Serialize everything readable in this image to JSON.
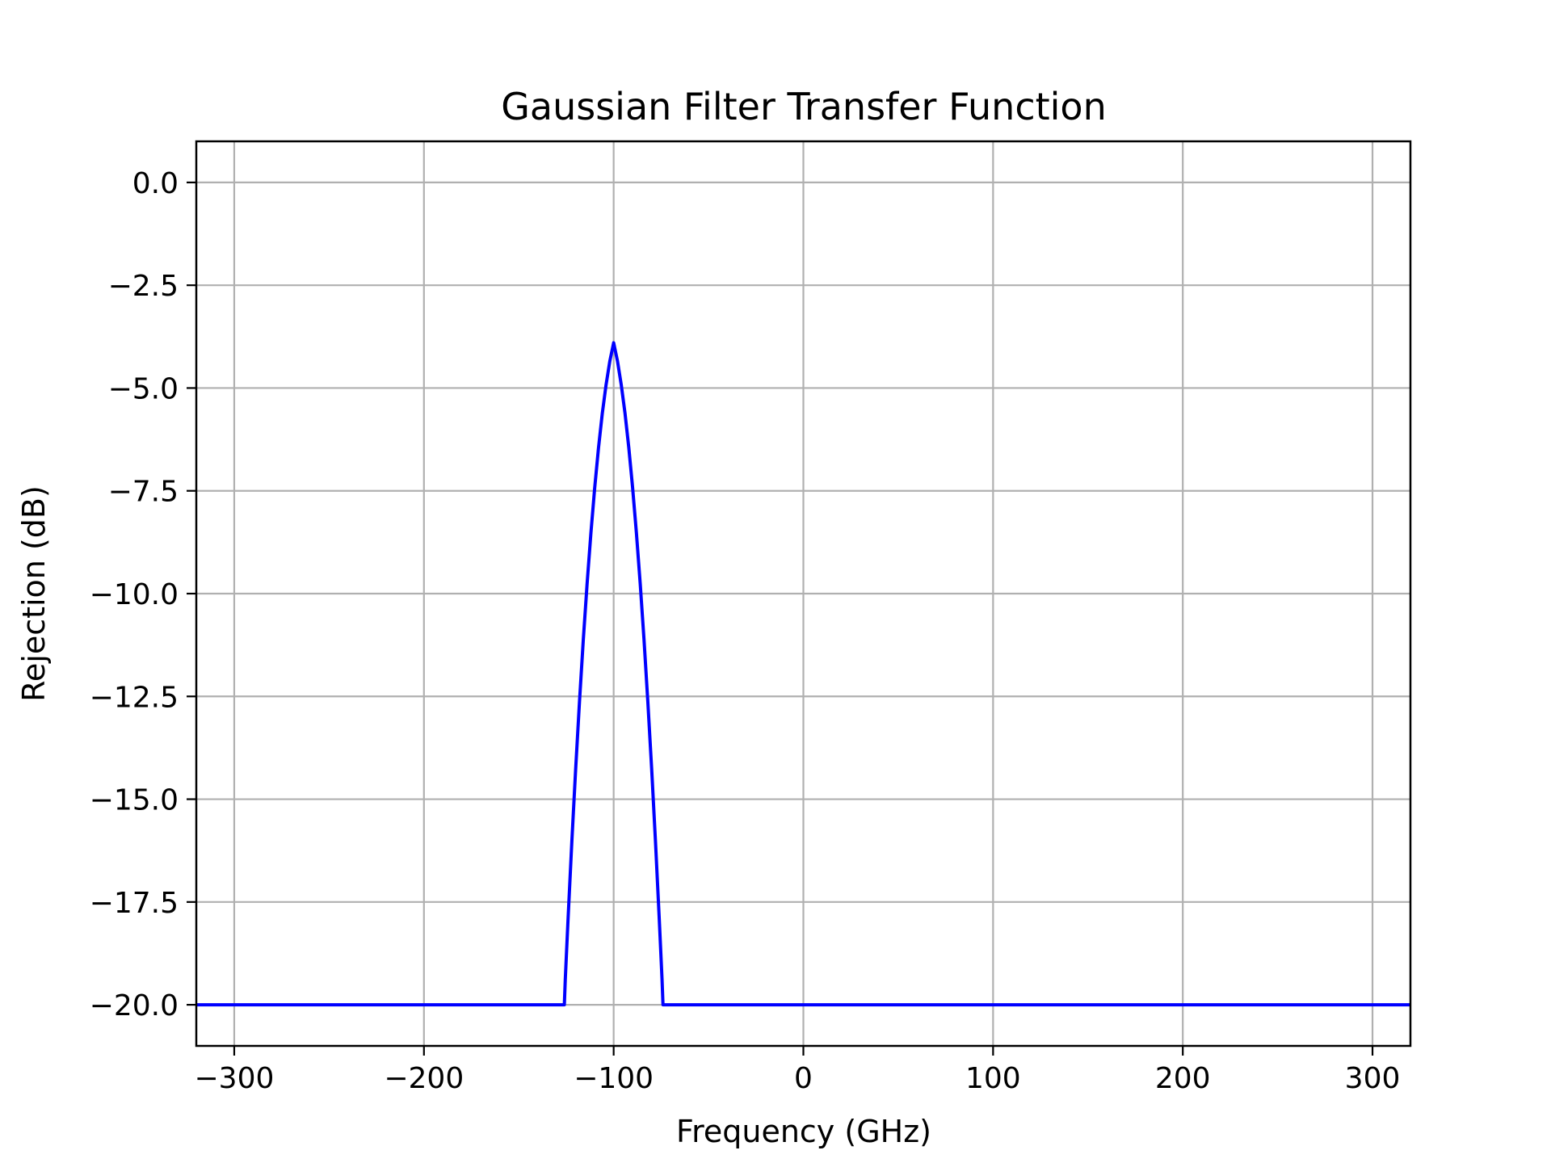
{
  "chart_data": {
    "type": "line",
    "title": "Gaussian Filter Transfer Function",
    "xlabel": "Frequency (GHz)",
    "ylabel": "Rejection (dB)",
    "xlim": [
      -320,
      320
    ],
    "ylim": [
      -21,
      1
    ],
    "grid": true,
    "legend": "none",
    "x_ticks": [
      -300,
      -200,
      -100,
      0,
      100,
      200,
      300
    ],
    "x_tick_labels": [
      "−300",
      "−200",
      "−100",
      "0",
      "100",
      "200",
      "300"
    ],
    "y_ticks": [
      0.0,
      -2.5,
      -5.0,
      -7.5,
      -10.0,
      -12.5,
      -15.0,
      -17.5,
      -20.0
    ],
    "y_tick_labels": [
      "0.0",
      "−2.5",
      "−5.0",
      "−7.5",
      "−10.0",
      "−12.5",
      "−15.0",
      "−17.5",
      "−20.0"
    ],
    "series": [
      {
        "color": "#0000ff",
        "x": [
          -320,
          -126,
          -125.5,
          -124,
          -122,
          -120,
          -118,
          -116,
          -114,
          -112,
          -110,
          -108,
          -106,
          -104,
          -102,
          -100,
          -98,
          -96,
          -94,
          -92,
          -90,
          -88,
          -86,
          -84,
          -82,
          -80,
          -78,
          -76,
          -74.5,
          -74,
          320
        ],
        "y": [
          -20.0,
          -20.0,
          -19.38,
          -17.88,
          -15.99,
          -14.24,
          -12.62,
          -11.12,
          -9.76,
          -8.53,
          -7.43,
          -6.46,
          -5.62,
          -4.92,
          -4.34,
          -3.9,
          -4.34,
          -4.92,
          -5.62,
          -6.46,
          -7.43,
          -8.53,
          -9.76,
          -11.12,
          -12.62,
          -14.24,
          -15.99,
          -17.88,
          -19.38,
          -20.0,
          -20.0
        ]
      }
    ],
    "colors": {
      "line": "#0000ff",
      "grid": "#b0b0b0",
      "axes": "#000000"
    }
  }
}
